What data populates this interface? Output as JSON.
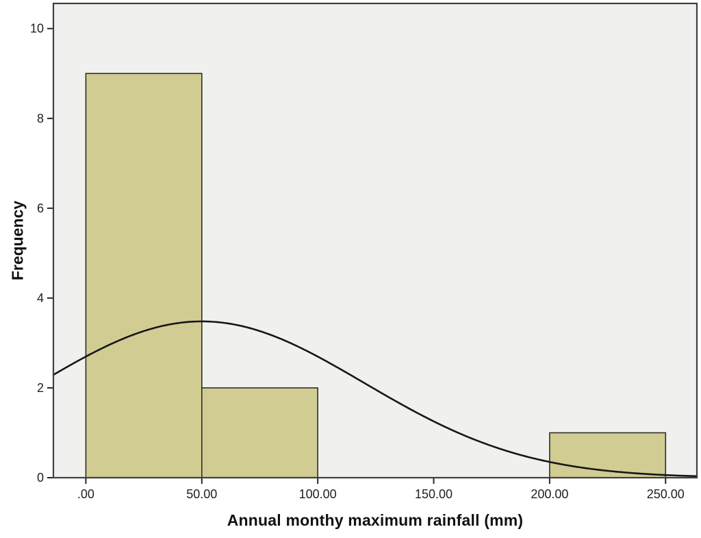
{
  "chart_data": {
    "type": "bar",
    "subtype": "histogram-with-normal-curve",
    "title": "",
    "xlabel": "Annual monthy maximum rainfall (mm)",
    "ylabel": "Frequency",
    "xlim": [
      -14,
      263.5
    ],
    "ylim": [
      0,
      10.56
    ],
    "grid": false,
    "legend": false,
    "x_ticks": [
      {
        "value": 0,
        "label": ".00"
      },
      {
        "value": 50,
        "label": "50.00"
      },
      {
        "value": 100,
        "label": "100.00"
      },
      {
        "value": 150,
        "label": "150.00"
      },
      {
        "value": 200,
        "label": "200.00"
      },
      {
        "value": 250,
        "label": "250.00"
      }
    ],
    "y_ticks": [
      {
        "value": 0,
        "label": "0"
      },
      {
        "value": 2,
        "label": "2"
      },
      {
        "value": 4,
        "label": "4"
      },
      {
        "value": 6,
        "label": "6"
      },
      {
        "value": 8,
        "label": "8"
      },
      {
        "value": 10,
        "label": "10"
      }
    ],
    "bins": [
      {
        "x0": 0,
        "x1": 50,
        "count": 9
      },
      {
        "x0": 50,
        "x1": 100,
        "count": 2
      },
      {
        "x0": 200,
        "x1": 250,
        "count": 1
      }
    ],
    "normal_curve": {
      "mean": 50,
      "sd": 70,
      "peak": 3.48
    }
  },
  "colors": {
    "outer_bg": "#ffffff",
    "plot_bg": "#f0f0ee",
    "frame": "#3f3f3f",
    "bar_fill": "#d1cc92",
    "bar_stroke": "#2d2d2d",
    "curve": "#161616",
    "tick": "#262626",
    "tick_text": "#1f1f1f"
  }
}
